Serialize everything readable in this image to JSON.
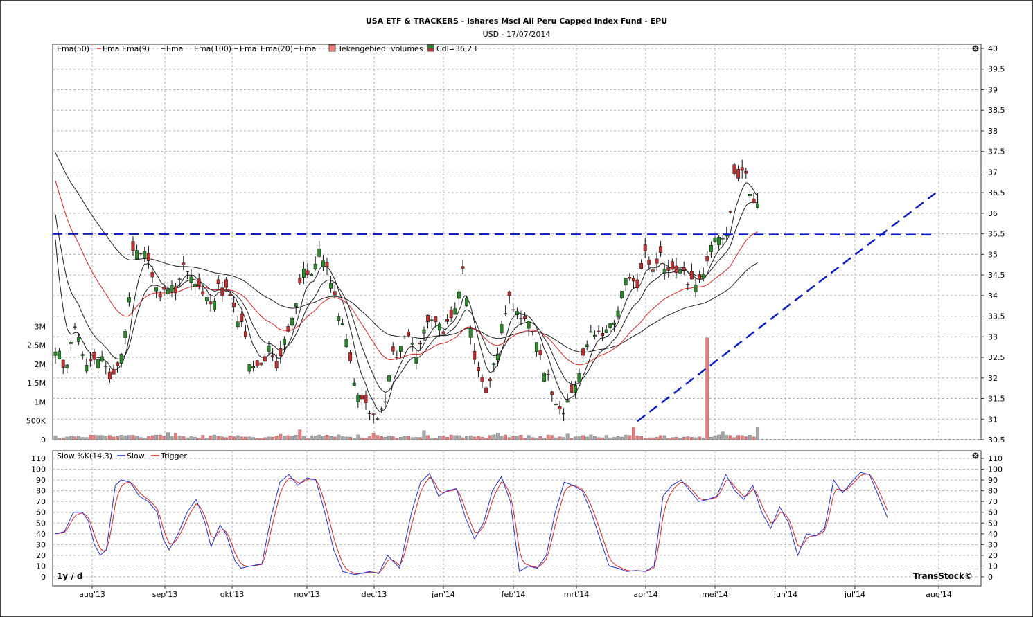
{
  "header": {
    "title": "USA ETF & TRACKERS - Ishares Msci All Peru Capped Index Fund - EPU",
    "subtitle": "USD - 17/07/2014"
  },
  "footer": {
    "period": "1y / d",
    "brand": "TransStock©"
  },
  "colors": {
    "grid": "#b0b0b0",
    "ema9": "#e02020",
    "ema_black": "#1a1a1a",
    "candle_up": "#2a8a2a",
    "candle_down": "#c03030",
    "vol_up": "#a8a8a8",
    "vol_down": "#f07878",
    "trendline": "#1020c8",
    "slow": "#2030d0",
    "trigger": "#e02020"
  },
  "chart_data": [
    {
      "type": "candlestick",
      "legend": [
        "Ema(50)",
        "Ema",
        "Ema(9)",
        "Ema",
        "Ema(100)",
        "Ema",
        "Ema(20)",
        "Ema",
        "Tekengebied: volumes",
        "Cdl=36,23"
      ],
      "x_labels": [
        "aug'13",
        "sep'13",
        "okt'13",
        "nov'13",
        "dec'13",
        "jan'14",
        "feb'14",
        "mrt'14",
        "apr'14",
        "mei'14",
        "jun'14",
        "jul'14",
        "aug'14"
      ],
      "price_ticks": [
        "30.5",
        "31",
        "31.5",
        "32",
        "32.5",
        "33",
        "33.5",
        "34",
        "34.5",
        "35",
        "35.5",
        "36",
        "36.5",
        "37",
        "37.5",
        "38",
        "38.5",
        "39",
        "39.5",
        "40"
      ],
      "volume_ticks": [
        "0",
        "500K",
        "1M",
        "1.5M",
        "2M",
        "2.5M",
        "3M"
      ],
      "ylim": [
        30.5,
        40
      ],
      "last_close": 36.23,
      "close_anchors": [
        [
          0,
          32.6
        ],
        [
          5,
          32.3
        ],
        [
          10,
          33.2
        ],
        [
          15,
          32.3
        ],
        [
          22,
          32.5
        ],
        [
          30,
          32.0
        ],
        [
          36,
          33.1
        ],
        [
          40,
          35.0
        ],
        [
          45,
          35.2
        ],
        [
          52,
          34.3
        ],
        [
          55,
          34.0
        ],
        [
          62,
          34.2
        ],
        [
          66,
          34.9
        ],
        [
          72,
          34.4
        ],
        [
          78,
          33.8
        ],
        [
          85,
          34.2
        ],
        [
          90,
          34.0
        ],
        [
          96,
          33.3
        ],
        [
          100,
          32.4
        ],
        [
          105,
          32.2
        ],
        [
          110,
          32.8
        ],
        [
          115,
          32.3
        ],
        [
          122,
          33.6
        ],
        [
          128,
          34.7
        ],
        [
          133,
          34.5
        ],
        [
          136,
          35.0
        ],
        [
          140,
          34.6
        ],
        [
          145,
          33.8
        ],
        [
          150,
          32.8
        ],
        [
          154,
          32.0
        ],
        [
          158,
          31.5
        ],
        [
          162,
          31.2
        ],
        [
          166,
          30.9
        ],
        [
          170,
          31.6
        ],
        [
          174,
          32.5
        ],
        [
          178,
          32.8
        ],
        [
          182,
          33.0
        ],
        [
          187,
          32.6
        ],
        [
          191,
          33.2
        ],
        [
          195,
          33.5
        ],
        [
          200,
          33.0
        ],
        [
          205,
          33.6
        ],
        [
          210,
          34.5
        ],
        [
          214,
          33.2
        ],
        [
          218,
          32.0
        ],
        [
          222,
          31.7
        ],
        [
          226,
          32.3
        ],
        [
          230,
          33.2
        ],
        [
          234,
          34.0
        ],
        [
          238,
          33.6
        ],
        [
          242,
          33.4
        ],
        [
          246,
          33.2
        ],
        [
          250,
          32.5
        ],
        [
          254,
          32.0
        ],
        [
          258,
          31.3
        ],
        [
          262,
          31.2
        ],
        [
          266,
          31.6
        ],
        [
          270,
          32.2
        ],
        [
          273,
          32.6
        ],
        [
          276,
          33.0
        ],
        [
          280,
          33.2
        ],
        [
          284,
          33.0
        ],
        [
          288,
          33.5
        ],
        [
          292,
          34.1
        ],
        [
          296,
          34.5
        ],
        [
          300,
          34.2
        ],
        [
          304,
          35.1
        ],
        [
          308,
          34.7
        ],
        [
          312,
          34.9
        ],
        [
          318,
          34.6
        ],
        [
          322,
          34.8
        ],
        [
          326,
          34.3
        ],
        [
          330,
          34.4
        ],
        [
          334,
          34.5
        ],
        [
          338,
          35.2
        ],
        [
          342,
          35.4
        ],
        [
          346,
          35.6
        ],
        [
          350,
          36.8
        ],
        [
          354,
          37.1
        ],
        [
          358,
          36.5
        ],
        [
          362,
          36.2
        ]
      ],
      "volume_spike": {
        "day": 336,
        "value": 2700000
      }
    },
    {
      "type": "line",
      "legend": [
        "Slow %K(14,3)",
        "Slow",
        "Trigger"
      ],
      "series": [
        {
          "name": "Slow"
        },
        {
          "name": "Trigger"
        }
      ],
      "ticks": [
        "0",
        "10",
        "20",
        "30",
        "40",
        "50",
        "60",
        "70",
        "80",
        "90",
        "100",
        "110"
      ],
      "ylim": [
        0,
        110
      ],
      "slow_anchors": [
        [
          0,
          40
        ],
        [
          3,
          42
        ],
        [
          6,
          60
        ],
        [
          9,
          60
        ],
        [
          11,
          52
        ],
        [
          13,
          30
        ],
        [
          15,
          20
        ],
        [
          17,
          25
        ],
        [
          20,
          85
        ],
        [
          22,
          90
        ],
        [
          25,
          88
        ],
        [
          28,
          75
        ],
        [
          31,
          70
        ],
        [
          34,
          60
        ],
        [
          36,
          35
        ],
        [
          38,
          25
        ],
        [
          41,
          40
        ],
        [
          44,
          60
        ],
        [
          47,
          72
        ],
        [
          50,
          50
        ],
        [
          52,
          28
        ],
        [
          55,
          48
        ],
        [
          57,
          40
        ],
        [
          60,
          15
        ],
        [
          62,
          8
        ],
        [
          65,
          10
        ],
        [
          69,
          12
        ],
        [
          72,
          55
        ],
        [
          75,
          88
        ],
        [
          78,
          95
        ],
        [
          81,
          85
        ],
        [
          84,
          92
        ],
        [
          87,
          90
        ],
        [
          90,
          60
        ],
        [
          93,
          25
        ],
        [
          96,
          5
        ],
        [
          100,
          2
        ],
        [
          105,
          5
        ],
        [
          108,
          3
        ],
        [
          111,
          20
        ],
        [
          115,
          8
        ],
        [
          119,
          60
        ],
        [
          122,
          88
        ],
        [
          125,
          96
        ],
        [
          128,
          75
        ],
        [
          131,
          80
        ],
        [
          134,
          82
        ],
        [
          137,
          55
        ],
        [
          140,
          35
        ],
        [
          143,
          50
        ],
        [
          146,
          80
        ],
        [
          149,
          93
        ],
        [
          152,
          70
        ],
        [
          155,
          5
        ],
        [
          158,
          10
        ],
        [
          161,
          8
        ],
        [
          164,
          20
        ],
        [
          167,
          60
        ],
        [
          170,
          88
        ],
        [
          173,
          85
        ],
        [
          176,
          80
        ],
        [
          179,
          60
        ],
        [
          182,
          35
        ],
        [
          185,
          10
        ],
        [
          188,
          8
        ],
        [
          191,
          5
        ],
        [
          194,
          6
        ],
        [
          197,
          5
        ],
        [
          200,
          10
        ],
        [
          203,
          75
        ],
        [
          206,
          85
        ],
        [
          209,
          90
        ],
        [
          212,
          80
        ],
        [
          215,
          70
        ],
        [
          218,
          72
        ],
        [
          221,
          75
        ],
        [
          224,
          95
        ],
        [
          227,
          80
        ],
        [
          230,
          72
        ],
        [
          233,
          85
        ],
        [
          236,
          60
        ],
        [
          239,
          45
        ],
        [
          242,
          65
        ],
        [
          245,
          50
        ],
        [
          248,
          20
        ],
        [
          251,
          40
        ],
        [
          254,
          38
        ],
        [
          257,
          45
        ],
        [
          260,
          90
        ],
        [
          263,
          78
        ],
        [
          266,
          88
        ],
        [
          269,
          97
        ],
        [
          272,
          95
        ],
        [
          275,
          75
        ],
        [
          278,
          55
        ]
      ]
    }
  ]
}
